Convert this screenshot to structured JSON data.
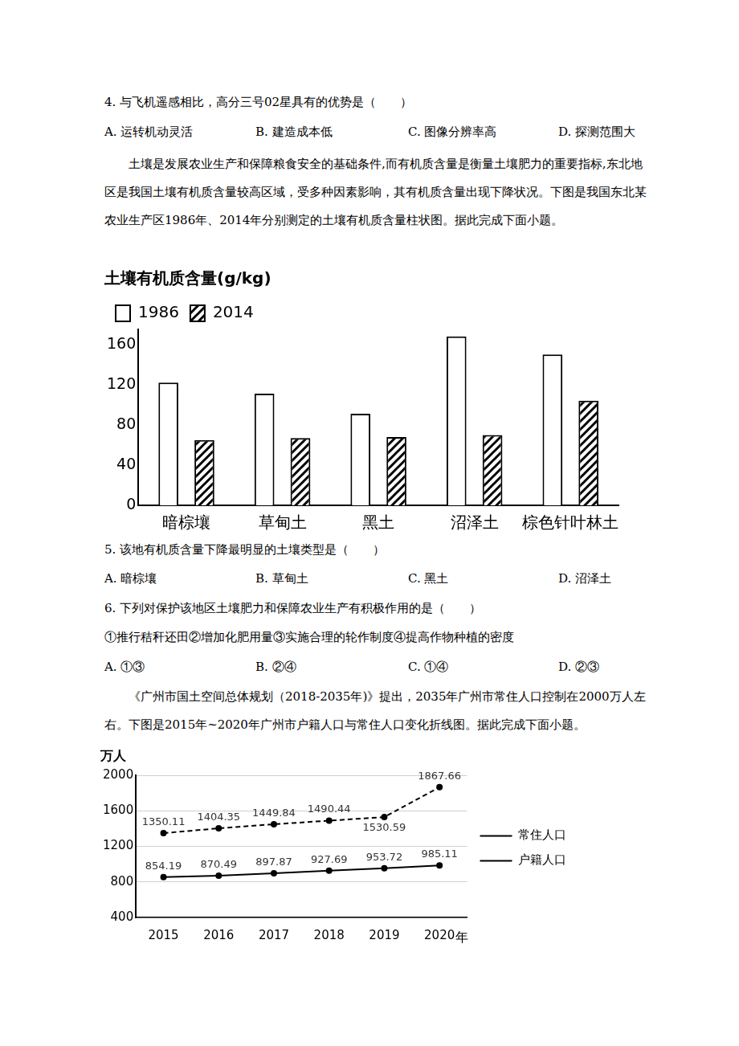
{
  "document": {
    "q4": {
      "stem": "4. 与飞机遥感相比，高分三号02星具有的优势是（　　）",
      "options": [
        "A. 运转机动灵活",
        "B. 建造成本低",
        "C. 图像分辨率高",
        "D. 探测范围大"
      ]
    },
    "passage1": "土壤是发展农业生产和保障粮食安全的基础条件,而有机质含量是衡量土壤肥力的重要指标,东北地区是我国土壤有机质含量较高区域，受多种因素影响，其有机质含量出现下降状况。下图是我国东北某农业生产区1986年、2014年分别测定的土壤有机质含量柱状图。据此完成下面小题。",
    "q5": {
      "stem": "5. 该地有机质含量下降最明显的土壤类型是（　　）",
      "options": [
        "A. 暗棕壤",
        "B. 草甸土",
        "C. 黑土",
        "D. 沼泽土"
      ]
    },
    "q6": {
      "stem": "6. 下列对保护该地区土壤肥力和保障农业生产有积极作用的是（　　）",
      "items": "①推行秸秆还田②增加化肥用量③实施合理的轮作制度④提高作物种植的密度",
      "options": [
        "A. ①③",
        "B. ②④",
        "C. ①④",
        "D. ②③"
      ]
    },
    "passage2": "《广州市国土空间总体规划（2018-2035年)》提出，2035年广州市常住人口控制在2000万人左右。下图是2015年~2020年广州市户籍人口与常住人口变化折线图。据此完成下面小题。"
  },
  "chart_data": [
    {
      "type": "bar",
      "title": "土壤有机质含量(g/kg)",
      "categories": [
        "暗棕壤",
        "草甸土",
        "黑土",
        "沼泽土",
        "棕色针叶林土"
      ],
      "series": [
        {
          "name": "1986",
          "color": "#ffffff",
          "values": [
            122,
            111,
            91,
            168,
            150
          ]
        },
        {
          "name": "2014",
          "color": "#000000",
          "values": [
            65,
            67,
            68,
            70,
            104
          ]
        }
      ],
      "ylim": [
        0,
        175
      ],
      "yticks": [
        0,
        40,
        80,
        120,
        160
      ],
      "grid": false,
      "legend": "top"
    },
    {
      "type": "line",
      "y_label": "万人",
      "x_label": "年",
      "categories": [
        "2015",
        "2016",
        "2017",
        "2018",
        "2019",
        "2020"
      ],
      "series": [
        {
          "name": "常住人口",
          "color": "#000000",
          "line_style": "dashed",
          "marker": "circle",
          "values": [
            1350.11,
            1404.35,
            1449.84,
            1490.44,
            1530.59,
            1867.66
          ]
        },
        {
          "name": "户籍人口",
          "color": "#000000",
          "line_style": "solid",
          "marker": "circle",
          "values": [
            854.19,
            870.49,
            897.87,
            927.69,
            953.72,
            985.11
          ]
        }
      ],
      "ylim": [
        400,
        2000
      ],
      "yticks": [
        400,
        800,
        1200,
        1600,
        2000
      ],
      "grid": true,
      "legend": "right",
      "data_labels": true
    }
  ]
}
